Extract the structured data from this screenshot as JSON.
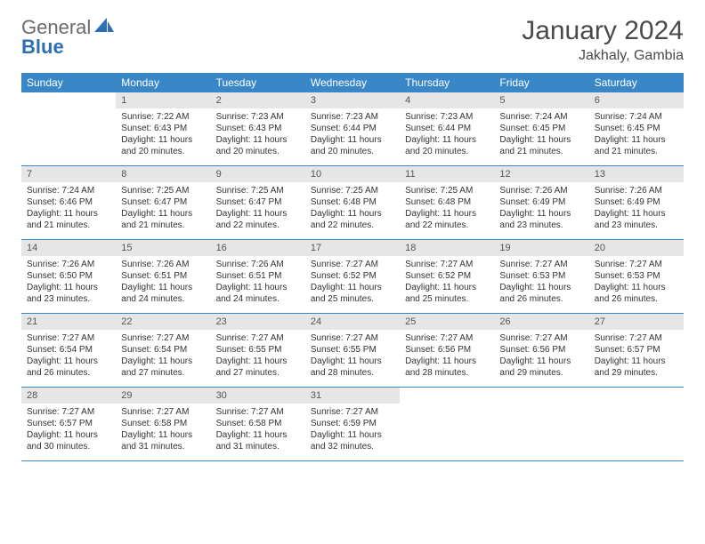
{
  "logo": {
    "general": "General",
    "blue": "Blue"
  },
  "title": "January 2024",
  "location": "Jakhaly, Gambia",
  "colors": {
    "header_bg": "#3a87c8",
    "header_text": "#ffffff",
    "daynum_bg": "#e6e6e6",
    "daynum_text": "#555555",
    "row_border": "#3a87c8",
    "body_text": "#333333",
    "title_text": "#4a4a4a",
    "logo_blue": "#2d6fb5",
    "logo_gray": "#6a6a6a"
  },
  "days_of_week": [
    "Sunday",
    "Monday",
    "Tuesday",
    "Wednesday",
    "Thursday",
    "Friday",
    "Saturday"
  ],
  "weeks": [
    [
      {
        "num": "",
        "sunrise": "",
        "sunset": "",
        "daylight1": "",
        "daylight2": ""
      },
      {
        "num": "1",
        "sunrise": "Sunrise: 7:22 AM",
        "sunset": "Sunset: 6:43 PM",
        "daylight1": "Daylight: 11 hours",
        "daylight2": "and 20 minutes."
      },
      {
        "num": "2",
        "sunrise": "Sunrise: 7:23 AM",
        "sunset": "Sunset: 6:43 PM",
        "daylight1": "Daylight: 11 hours",
        "daylight2": "and 20 minutes."
      },
      {
        "num": "3",
        "sunrise": "Sunrise: 7:23 AM",
        "sunset": "Sunset: 6:44 PM",
        "daylight1": "Daylight: 11 hours",
        "daylight2": "and 20 minutes."
      },
      {
        "num": "4",
        "sunrise": "Sunrise: 7:23 AM",
        "sunset": "Sunset: 6:44 PM",
        "daylight1": "Daylight: 11 hours",
        "daylight2": "and 20 minutes."
      },
      {
        "num": "5",
        "sunrise": "Sunrise: 7:24 AM",
        "sunset": "Sunset: 6:45 PM",
        "daylight1": "Daylight: 11 hours",
        "daylight2": "and 21 minutes."
      },
      {
        "num": "6",
        "sunrise": "Sunrise: 7:24 AM",
        "sunset": "Sunset: 6:45 PM",
        "daylight1": "Daylight: 11 hours",
        "daylight2": "and 21 minutes."
      }
    ],
    [
      {
        "num": "7",
        "sunrise": "Sunrise: 7:24 AM",
        "sunset": "Sunset: 6:46 PM",
        "daylight1": "Daylight: 11 hours",
        "daylight2": "and 21 minutes."
      },
      {
        "num": "8",
        "sunrise": "Sunrise: 7:25 AM",
        "sunset": "Sunset: 6:47 PM",
        "daylight1": "Daylight: 11 hours",
        "daylight2": "and 21 minutes."
      },
      {
        "num": "9",
        "sunrise": "Sunrise: 7:25 AM",
        "sunset": "Sunset: 6:47 PM",
        "daylight1": "Daylight: 11 hours",
        "daylight2": "and 22 minutes."
      },
      {
        "num": "10",
        "sunrise": "Sunrise: 7:25 AM",
        "sunset": "Sunset: 6:48 PM",
        "daylight1": "Daylight: 11 hours",
        "daylight2": "and 22 minutes."
      },
      {
        "num": "11",
        "sunrise": "Sunrise: 7:25 AM",
        "sunset": "Sunset: 6:48 PM",
        "daylight1": "Daylight: 11 hours",
        "daylight2": "and 22 minutes."
      },
      {
        "num": "12",
        "sunrise": "Sunrise: 7:26 AM",
        "sunset": "Sunset: 6:49 PM",
        "daylight1": "Daylight: 11 hours",
        "daylight2": "and 23 minutes."
      },
      {
        "num": "13",
        "sunrise": "Sunrise: 7:26 AM",
        "sunset": "Sunset: 6:49 PM",
        "daylight1": "Daylight: 11 hours",
        "daylight2": "and 23 minutes."
      }
    ],
    [
      {
        "num": "14",
        "sunrise": "Sunrise: 7:26 AM",
        "sunset": "Sunset: 6:50 PM",
        "daylight1": "Daylight: 11 hours",
        "daylight2": "and 23 minutes."
      },
      {
        "num": "15",
        "sunrise": "Sunrise: 7:26 AM",
        "sunset": "Sunset: 6:51 PM",
        "daylight1": "Daylight: 11 hours",
        "daylight2": "and 24 minutes."
      },
      {
        "num": "16",
        "sunrise": "Sunrise: 7:26 AM",
        "sunset": "Sunset: 6:51 PM",
        "daylight1": "Daylight: 11 hours",
        "daylight2": "and 24 minutes."
      },
      {
        "num": "17",
        "sunrise": "Sunrise: 7:27 AM",
        "sunset": "Sunset: 6:52 PM",
        "daylight1": "Daylight: 11 hours",
        "daylight2": "and 25 minutes."
      },
      {
        "num": "18",
        "sunrise": "Sunrise: 7:27 AM",
        "sunset": "Sunset: 6:52 PM",
        "daylight1": "Daylight: 11 hours",
        "daylight2": "and 25 minutes."
      },
      {
        "num": "19",
        "sunrise": "Sunrise: 7:27 AM",
        "sunset": "Sunset: 6:53 PM",
        "daylight1": "Daylight: 11 hours",
        "daylight2": "and 26 minutes."
      },
      {
        "num": "20",
        "sunrise": "Sunrise: 7:27 AM",
        "sunset": "Sunset: 6:53 PM",
        "daylight1": "Daylight: 11 hours",
        "daylight2": "and 26 minutes."
      }
    ],
    [
      {
        "num": "21",
        "sunrise": "Sunrise: 7:27 AM",
        "sunset": "Sunset: 6:54 PM",
        "daylight1": "Daylight: 11 hours",
        "daylight2": "and 26 minutes."
      },
      {
        "num": "22",
        "sunrise": "Sunrise: 7:27 AM",
        "sunset": "Sunset: 6:54 PM",
        "daylight1": "Daylight: 11 hours",
        "daylight2": "and 27 minutes."
      },
      {
        "num": "23",
        "sunrise": "Sunrise: 7:27 AM",
        "sunset": "Sunset: 6:55 PM",
        "daylight1": "Daylight: 11 hours",
        "daylight2": "and 27 minutes."
      },
      {
        "num": "24",
        "sunrise": "Sunrise: 7:27 AM",
        "sunset": "Sunset: 6:55 PM",
        "daylight1": "Daylight: 11 hours",
        "daylight2": "and 28 minutes."
      },
      {
        "num": "25",
        "sunrise": "Sunrise: 7:27 AM",
        "sunset": "Sunset: 6:56 PM",
        "daylight1": "Daylight: 11 hours",
        "daylight2": "and 28 minutes."
      },
      {
        "num": "26",
        "sunrise": "Sunrise: 7:27 AM",
        "sunset": "Sunset: 6:56 PM",
        "daylight1": "Daylight: 11 hours",
        "daylight2": "and 29 minutes."
      },
      {
        "num": "27",
        "sunrise": "Sunrise: 7:27 AM",
        "sunset": "Sunset: 6:57 PM",
        "daylight1": "Daylight: 11 hours",
        "daylight2": "and 29 minutes."
      }
    ],
    [
      {
        "num": "28",
        "sunrise": "Sunrise: 7:27 AM",
        "sunset": "Sunset: 6:57 PM",
        "daylight1": "Daylight: 11 hours",
        "daylight2": "and 30 minutes."
      },
      {
        "num": "29",
        "sunrise": "Sunrise: 7:27 AM",
        "sunset": "Sunset: 6:58 PM",
        "daylight1": "Daylight: 11 hours",
        "daylight2": "and 31 minutes."
      },
      {
        "num": "30",
        "sunrise": "Sunrise: 7:27 AM",
        "sunset": "Sunset: 6:58 PM",
        "daylight1": "Daylight: 11 hours",
        "daylight2": "and 31 minutes."
      },
      {
        "num": "31",
        "sunrise": "Sunrise: 7:27 AM",
        "sunset": "Sunset: 6:59 PM",
        "daylight1": "Daylight: 11 hours",
        "daylight2": "and 32 minutes."
      },
      {
        "num": "",
        "sunrise": "",
        "sunset": "",
        "daylight1": "",
        "daylight2": ""
      },
      {
        "num": "",
        "sunrise": "",
        "sunset": "",
        "daylight1": "",
        "daylight2": ""
      },
      {
        "num": "",
        "sunrise": "",
        "sunset": "",
        "daylight1": "",
        "daylight2": ""
      }
    ]
  ]
}
